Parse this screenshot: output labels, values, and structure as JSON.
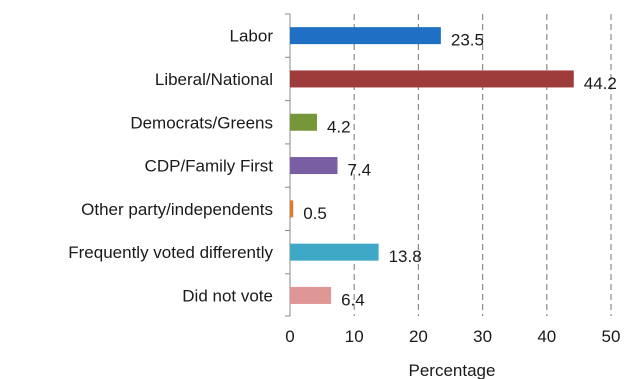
{
  "chart_data": {
    "type": "bar",
    "orientation": "horizontal",
    "categories": [
      "Labor",
      "Liberal/National",
      "Democrats/Greens",
      "CDP/Family First",
      "Other party/independents",
      "Frequently voted differently",
      "Did not vote"
    ],
    "values": [
      23.5,
      44.2,
      4.2,
      7.4,
      0.5,
      13.8,
      6.4
    ],
    "data_labels": [
      "23.5",
      "44.2",
      "4.2",
      "7.4",
      "0.5",
      "13.8",
      "6.4"
    ],
    "colors": [
      "#1f6fc5",
      "#9e3b3b",
      "#76963a",
      "#7a5ea3",
      "#e07b2a",
      "#3fa8c6",
      "#df9696"
    ],
    "title": "",
    "xlabel": "Percentage",
    "ylabel": "",
    "xlim": [
      0,
      50
    ],
    "xticks": [
      0,
      10,
      20,
      30,
      40,
      50
    ],
    "xtick_labels": [
      "0",
      "10",
      "20",
      "30",
      "40",
      "50"
    ],
    "grid": "vertical dashed",
    "legend": "none"
  }
}
